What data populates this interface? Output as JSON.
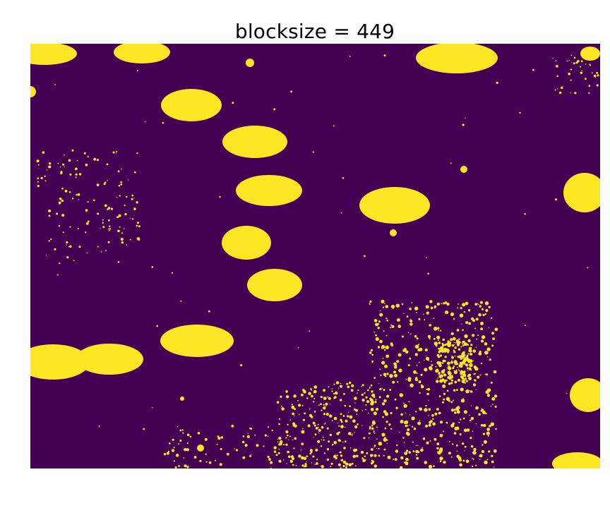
{
  "figure": {
    "title": "blocksize = 449"
  },
  "image": {
    "colormap": "viridis",
    "background_color": "#440154",
    "foreground_color": "#fde725"
  }
}
